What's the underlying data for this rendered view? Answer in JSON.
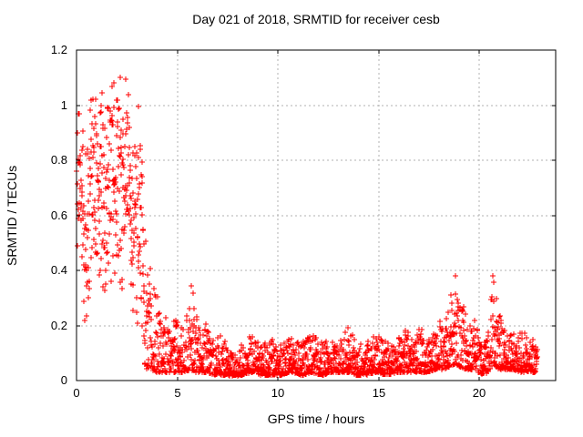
{
  "chart_data": {
    "type": "scatter",
    "title": "Day 021 of 2018, SRMTID for receiver cesb",
    "xlabel": "GPS time / hours",
    "ylabel": "SRMTID / TECUs",
    "xlim": [
      0,
      23.8
    ],
    "ylim": [
      0,
      1.2
    ],
    "xticks": [
      0,
      5,
      10,
      15,
      20
    ],
    "xtick_labels": [
      "0",
      "5",
      "10",
      "15",
      "20"
    ],
    "yticks": [
      0,
      0.2,
      0.4,
      0.6,
      0.8,
      1,
      1.2
    ],
    "ytick_labels": [
      "0",
      "0.2",
      "0.4",
      "0.6",
      "0.8",
      "1",
      "1.2"
    ],
    "grid": true,
    "legend": "none",
    "marker": {
      "shape": "plus",
      "color": "#ff0000",
      "size": 7,
      "stroke_width": 1
    },
    "axis_color": "#000000",
    "grid_color": "#b0b0b0",
    "grid_dash": "2 3",
    "background": "#ffffff",
    "tick_length": 4,
    "series_name": "SRMTID",
    "sampling": {
      "t_start": 0.02,
      "t_end": 22.9,
      "dt": 0.01,
      "seed": 18021,
      "active_until": 3.38,
      "uniform_mix": 0.3
    },
    "envelope": [
      [
        0.0,
        0.45,
        0.95
      ],
      [
        0.25,
        0.35,
        1.02
      ],
      [
        0.45,
        0.12,
        1.0
      ],
      [
        0.7,
        0.3,
        1.05
      ],
      [
        1.0,
        0.32,
        1.13
      ],
      [
        1.4,
        0.28,
        1.12
      ],
      [
        1.8,
        0.33,
        1.08
      ],
      [
        2.15,
        0.32,
        1.13
      ],
      [
        2.5,
        0.28,
        1.1
      ],
      [
        2.8,
        0.22,
        0.95
      ],
      [
        3.1,
        0.18,
        1.02
      ],
      [
        3.3,
        0.08,
        0.7
      ],
      [
        3.45,
        0.04,
        0.5
      ],
      [
        3.7,
        0.04,
        0.42
      ],
      [
        4.0,
        0.03,
        0.32
      ],
      [
        4.3,
        0.03,
        0.24
      ],
      [
        4.7,
        0.03,
        0.22
      ],
      [
        5.1,
        0.03,
        0.23
      ],
      [
        5.4,
        0.03,
        0.2
      ],
      [
        5.65,
        0.04,
        0.4
      ],
      [
        5.9,
        0.03,
        0.28
      ],
      [
        6.15,
        0.03,
        0.18
      ],
      [
        6.45,
        0.03,
        0.22
      ],
      [
        6.8,
        0.02,
        0.16
      ],
      [
        7.3,
        0.02,
        0.17
      ],
      [
        7.7,
        0.015,
        0.1
      ],
      [
        8.2,
        0.02,
        0.13
      ],
      [
        8.7,
        0.03,
        0.17
      ],
      [
        9.2,
        0.02,
        0.13
      ],
      [
        9.7,
        0.02,
        0.15
      ],
      [
        10.2,
        0.02,
        0.13
      ],
      [
        10.7,
        0.03,
        0.16
      ],
      [
        11.2,
        0.02,
        0.14
      ],
      [
        11.7,
        0.03,
        0.17
      ],
      [
        12.2,
        0.02,
        0.14
      ],
      [
        12.7,
        0.03,
        0.16
      ],
      [
        13.2,
        0.03,
        0.15
      ],
      [
        13.5,
        0.03,
        0.21
      ],
      [
        13.9,
        0.02,
        0.14
      ],
      [
        14.4,
        0.02,
        0.15
      ],
      [
        14.9,
        0.03,
        0.17
      ],
      [
        15.4,
        0.02,
        0.14
      ],
      [
        15.9,
        0.03,
        0.16
      ],
      [
        16.3,
        0.03,
        0.19
      ],
      [
        16.7,
        0.03,
        0.16
      ],
      [
        17.0,
        0.03,
        0.21
      ],
      [
        17.4,
        0.03,
        0.16
      ],
      [
        17.8,
        0.04,
        0.18
      ],
      [
        18.2,
        0.04,
        0.24
      ],
      [
        18.55,
        0.05,
        0.32
      ],
      [
        18.8,
        0.06,
        0.41
      ],
      [
        19.05,
        0.05,
        0.3
      ],
      [
        19.4,
        0.04,
        0.24
      ],
      [
        19.8,
        0.04,
        0.22
      ],
      [
        20.15,
        0.02,
        0.13
      ],
      [
        20.45,
        0.03,
        0.18
      ],
      [
        20.7,
        0.06,
        0.44
      ],
      [
        20.95,
        0.04,
        0.25
      ],
      [
        21.3,
        0.04,
        0.19
      ],
      [
        21.7,
        0.04,
        0.18
      ],
      [
        22.1,
        0.03,
        0.18
      ],
      [
        22.5,
        0.03,
        0.16
      ],
      [
        22.9,
        0.03,
        0.14
      ]
    ]
  }
}
